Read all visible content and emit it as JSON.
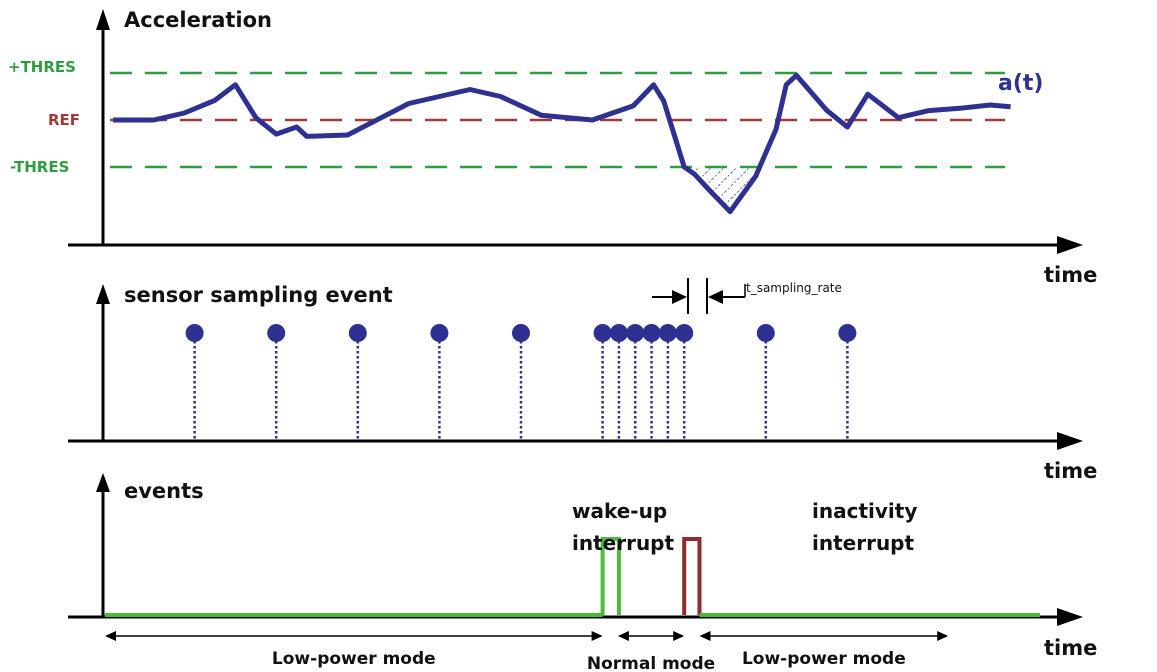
{
  "colors": {
    "threshold": "#2e9e3e",
    "reference": "#a03a3a",
    "signal": "#2e3192",
    "sample": "#2e3192",
    "events_line": "#4cbb3c",
    "wakeup_pulse": "#4cbb3c",
    "inactivity_pulse": "#8b2e2e",
    "axis": "#000000"
  },
  "panel_acceleration": {
    "axis_label": "Acceleration",
    "time_label": "time",
    "levels": {
      "plus_thres": "+THRES",
      "ref": "REF",
      "minus_thres": "-THRES"
    },
    "signal_label": "a(t)",
    "signal": [
      [
        0,
        0.0
      ],
      [
        4,
        0.0
      ],
      [
        7,
        0.15
      ],
      [
        10,
        0.42
      ],
      [
        12,
        0.75
      ],
      [
        14,
        0.05
      ],
      [
        16,
        -0.3
      ],
      [
        18,
        -0.15
      ],
      [
        19,
        -0.35
      ],
      [
        23,
        -0.32
      ],
      [
        29,
        0.35
      ],
      [
        35,
        0.65
      ],
      [
        38,
        0.5
      ],
      [
        42,
        0.1
      ],
      [
        47,
        0.0
      ],
      [
        51,
        0.3
      ],
      [
        53,
        0.75
      ],
      [
        54,
        0.4
      ],
      [
        56,
        -1.0
      ],
      [
        57,
        -1.15
      ],
      [
        58.5,
        -1.5
      ],
      [
        60.5,
        -1.95
      ],
      [
        63,
        -1.2
      ],
      [
        65,
        -0.2
      ],
      [
        66,
        0.75
      ],
      [
        67,
        0.95
      ],
      [
        70,
        0.2
      ],
      [
        72,
        -0.15
      ],
      [
        74,
        0.55
      ],
      [
        77,
        0.05
      ],
      [
        80,
        0.2
      ],
      [
        83,
        0.25
      ],
      [
        86,
        0.32
      ],
      [
        88,
        0.28
      ]
    ]
  },
  "panel_sampling": {
    "axis_label": "sensor sampling event",
    "time_label": "time",
    "interval_label": "t_sampling_rate",
    "samples": [
      8,
      16,
      24,
      32,
      40,
      48,
      49.6,
      51.2,
      52.8,
      54.4,
      56,
      64,
      72
    ]
  },
  "panel_events": {
    "axis_label": "events",
    "time_label": "time",
    "wakeup": {
      "label_line1": "wake-up",
      "label_line2": "interrupt",
      "start": 48,
      "end": 49.6
    },
    "inactivity": {
      "label_line1": "inactivity",
      "label_line2": "interrupt",
      "start": 56,
      "end": 57.5
    }
  },
  "modes": [
    {
      "label": "Low-power mode",
      "start": 0,
      "end": 48
    },
    {
      "label": "Normal mode",
      "start": 49.5,
      "end": 56
    },
    {
      "label": "Low-power mode",
      "start": 57.5,
      "end": 76
    }
  ]
}
